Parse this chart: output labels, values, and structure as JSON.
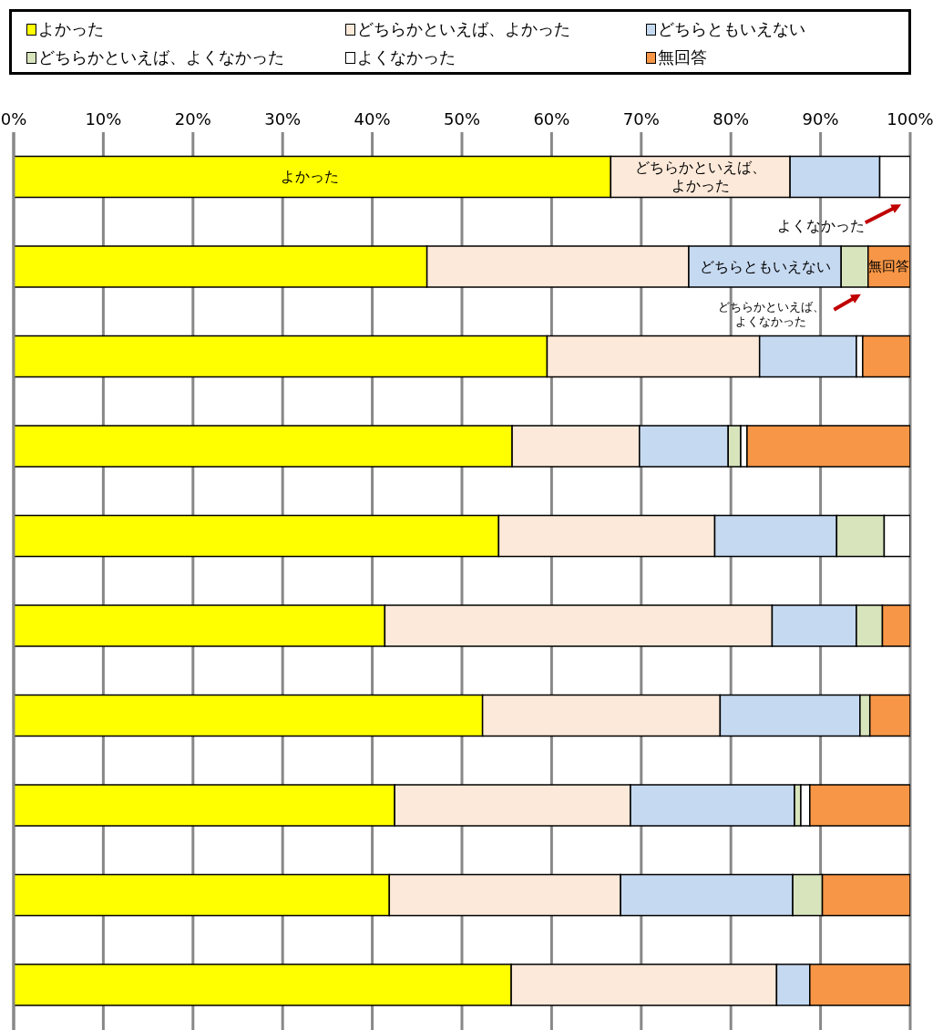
{
  "chart_data": {
    "type": "bar",
    "orientation": "horizontal",
    "stacked": true,
    "categories": [
      null,
      null,
      null,
      null,
      null,
      null,
      null,
      null,
      null,
      null
    ],
    "series": [
      {
        "name": "よかった",
        "color": "#ffff00",
        "values": [
          66.6,
          46.1,
          59.5,
          55.6,
          54.1,
          41.4,
          52.3,
          42.5,
          41.9,
          55.5
        ]
      },
      {
        "name": "どちらかといえば、よかった",
        "color": "#fde9d9",
        "values": [
          20.0,
          29.2,
          23.7,
          14.2,
          24.1,
          43.2,
          26.5,
          26.3,
          25.8,
          29.6
        ]
      },
      {
        "name": "どちらともいえない",
        "color": "#c5d9f1",
        "values": [
          10.0,
          17.0,
          10.8,
          9.9,
          13.6,
          9.4,
          15.6,
          18.3,
          19.2,
          3.7
        ]
      },
      {
        "name": "どちらかといえば、よくなかった",
        "color": "#d8e4bc",
        "values": [
          0,
          3.0,
          0,
          1.4,
          5.3,
          2.9,
          1.1,
          0.7,
          3.3,
          0
        ]
      },
      {
        "name": "よくなかった",
        "color": "#ffffff",
        "values": [
          3.4,
          0,
          0.7,
          0.7,
          2.9,
          0,
          0,
          1.0,
          0,
          0
        ]
      },
      {
        "name": "無回答",
        "color": "#f79646",
        "values": [
          0,
          4.7,
          5.3,
          18.2,
          0,
          3.1,
          4.5,
          11.2,
          9.8,
          11.2
        ]
      }
    ],
    "xlim": [
      0,
      100
    ],
    "xticks": [
      {
        "value": 0,
        "label": "0%"
      },
      {
        "value": 10,
        "label": "10%"
      },
      {
        "value": 20,
        "label": "20%"
      },
      {
        "value": 30,
        "label": "30%"
      },
      {
        "value": 40,
        "label": "40%"
      },
      {
        "value": 50,
        "label": "50%"
      },
      {
        "value": 60,
        "label": "60%"
      },
      {
        "value": 70,
        "label": "70%"
      },
      {
        "value": 80,
        "label": "80%"
      },
      {
        "value": 90,
        "label": "90%"
      },
      {
        "value": 100,
        "label": "100%"
      }
    ],
    "grid": "x",
    "legend": "top",
    "tick_labels": "x",
    "annotations": [
      "よかった",
      "どちらかといえば、よかった",
      "よくなかった",
      "どちらともいえない",
      "無回答",
      "どちらかといえば、よくなかった"
    ]
  }
}
